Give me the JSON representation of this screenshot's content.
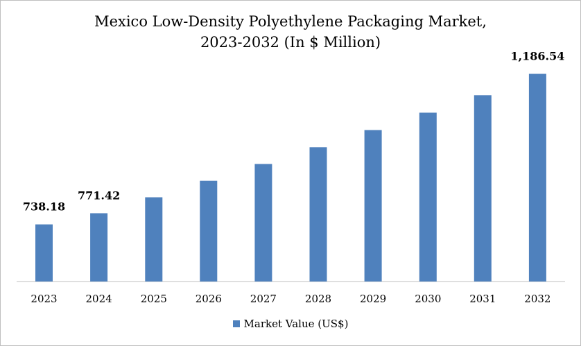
{
  "chart_data": {
    "type": "bar",
    "title": "Mexico Low-Density Polyethylene Packaging Market,",
    "subtitle": "2023-2032 (In $ Million)",
    "categories": [
      "2023",
      "2024",
      "2025",
      "2026",
      "2027",
      "2028",
      "2029",
      "2030",
      "2031",
      "2032"
    ],
    "series": [
      {
        "name": "Market Value (US$)",
        "color": "#4f81bd",
        "values": [
          738.18,
          771.42,
          819,
          868,
          918,
          968,
          1019,
          1071,
          1123,
          1186.54
        ]
      }
    ],
    "data_labels": [
      "738.18",
      "771.42",
      "",
      "",
      "",
      "",
      "",
      "",
      "",
      "1,186.54"
    ],
    "ylim": [
      568,
      1200
    ],
    "grid": false,
    "legend_position": "bottom"
  }
}
